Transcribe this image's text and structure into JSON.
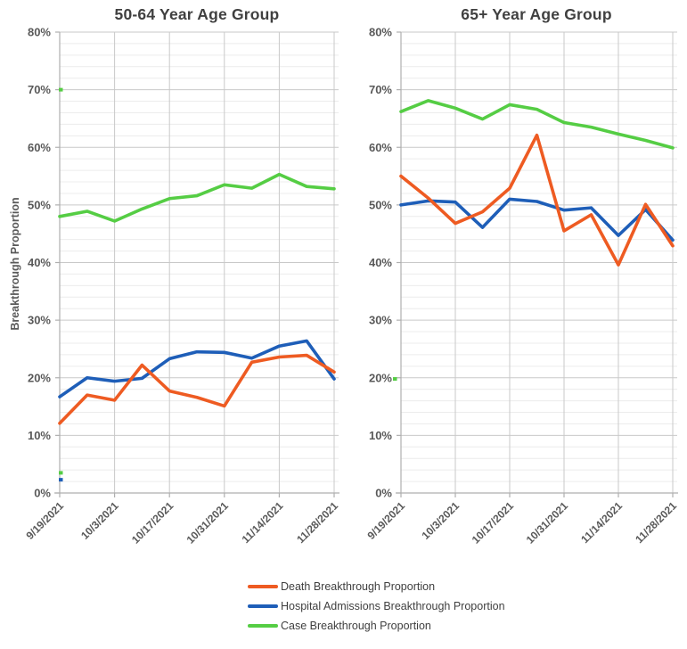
{
  "colors": {
    "death": "#EE5B22",
    "hospital": "#1E5EB8",
    "case": "#55CD44",
    "grid_major": "#C9C9C9",
    "grid_minor": "#ECECEC",
    "axis": "#AFAFAF",
    "tick_text": "#595959",
    "title_text": "#404040"
  },
  "legend": {
    "items": [
      {
        "label": "Death Breakthrough Proportion",
        "color": "#EE5B22"
      },
      {
        "label": "Hospital Admissions Breakthrough Proportion",
        "color": "#1E5EB8"
      },
      {
        "label": "Case Breakthrough Proportion",
        "color": "#55CD44"
      }
    ]
  },
  "chart_data": [
    {
      "type": "line",
      "title": "50-64 Year Age Group",
      "ylabel": "Breakthrough Proportion",
      "ylim": [
        0,
        80
      ],
      "y_major_step": 10,
      "y_minor_step": 2,
      "grid": true,
      "y_tick_labels": [
        "0%",
        "10%",
        "20%",
        "30%",
        "40%",
        "50%",
        "60%",
        "70%",
        "80%"
      ],
      "x_tick_labels": [
        "9/19/2021",
        "10/3/2021",
        "10/17/2021",
        "10/31/2021",
        "11/14/2021",
        "11/28/2021"
      ],
      "x_label_indices": [
        0,
        2,
        4,
        6,
        8,
        10
      ],
      "n_points": 11,
      "series": [
        {
          "name": "Death Breakthrough Proportion",
          "color": "#EE5B22",
          "values": [
            12.1,
            17.0,
            16.1,
            22.2,
            17.7,
            16.6,
            15.1,
            22.7,
            23.6,
            23.9,
            21.0
          ]
        },
        {
          "name": "Hospital Admissions Breakthrough Proportion",
          "color": "#1E5EB8",
          "values": [
            16.7,
            20.0,
            19.4,
            19.9,
            23.3,
            24.5,
            24.4,
            23.4,
            25.5,
            26.4,
            19.8
          ]
        },
        {
          "name": "Case Breakthrough Proportion",
          "color": "#55CD44",
          "values": [
            48.0,
            48.9,
            47.2,
            49.3,
            51.1,
            51.6,
            53.5,
            52.9,
            55.3,
            53.2,
            52.8
          ]
        }
      ],
      "edge_marks": [
        {
          "value": 70,
          "dx": 1,
          "color": "#55CD44"
        },
        {
          "value": 3.5,
          "dx": 1,
          "color": "#55CD44"
        },
        {
          "value": 2.3,
          "dx": 1,
          "color": "#1E5EB8"
        }
      ]
    },
    {
      "type": "line",
      "title": "65+ Year Age Group",
      "ylabel": "",
      "ylim": [
        0,
        80
      ],
      "y_major_step": 10,
      "y_minor_step": 2,
      "grid": true,
      "y_tick_labels": [
        "0%",
        "10%",
        "20%",
        "30%",
        "40%",
        "50%",
        "60%",
        "70%",
        "80%"
      ],
      "x_tick_labels": [
        "9/19/2021",
        "10/3/2021",
        "10/17/2021",
        "10/31/2021",
        "11/14/2021",
        "11/28/2021"
      ],
      "x_label_indices": [
        0,
        2,
        4,
        6,
        8,
        10
      ],
      "n_points": 11,
      "series": [
        {
          "name": "Death Breakthrough Proportion",
          "color": "#EE5B22",
          "values": [
            55.0,
            51.2,
            46.8,
            48.8,
            52.9,
            62.1,
            45.5,
            48.3,
            39.6,
            50.1,
            42.9
          ]
        },
        {
          "name": "Hospital Admissions Breakthrough Proportion",
          "color": "#1E5EB8",
          "values": [
            50.0,
            50.7,
            50.5,
            46.1,
            51.0,
            50.6,
            49.1,
            49.5,
            44.7,
            49.2,
            43.9
          ]
        },
        {
          "name": "Case Breakthrough Proportion",
          "color": "#55CD44",
          "values": [
            66.2,
            68.1,
            66.8,
            64.9,
            67.4,
            66.6,
            64.3,
            63.5,
            62.3,
            61.2,
            59.9
          ]
        }
      ],
      "edge_marks": [
        {
          "value": 19.8,
          "dx": -7,
          "color": "#55CD44"
        }
      ]
    }
  ]
}
